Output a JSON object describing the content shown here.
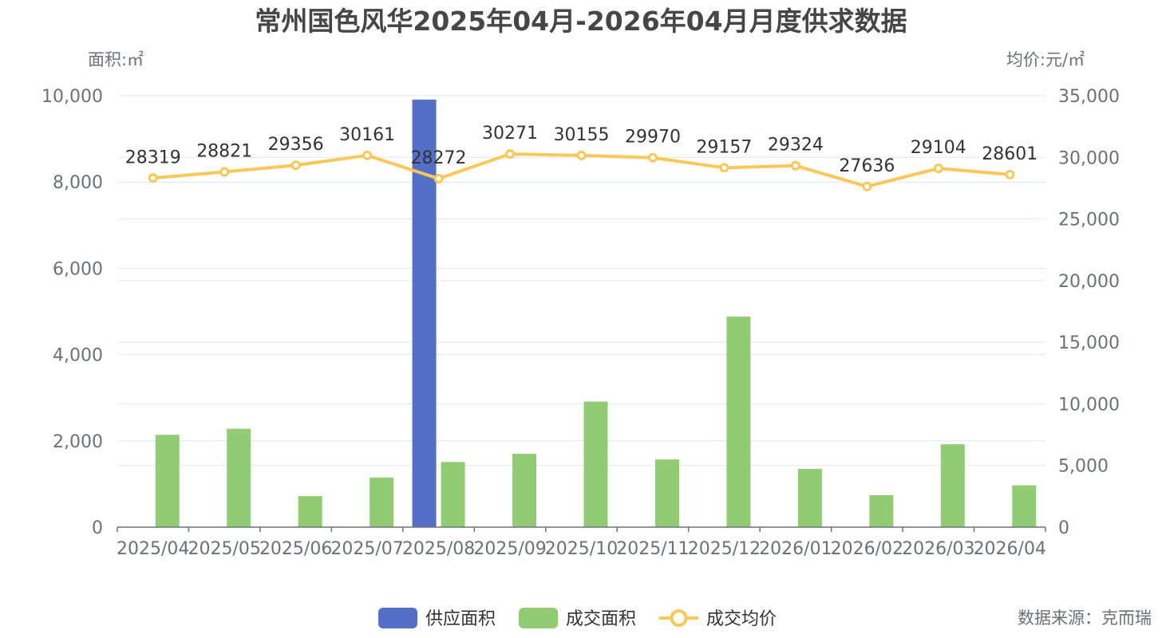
{
  "chart_data": {
    "type": "bar",
    "title": "常州国色风华2025年04月-2026年04月月度供求数据",
    "y_left_name": "面积:㎡",
    "y_right_name": "均价:元/㎡",
    "categories": [
      "2025/04",
      "2025/05",
      "2025/06",
      "2025/07",
      "2025/08",
      "2025/09",
      "2025/10",
      "2025/11",
      "2025/12",
      "2026/01",
      "2026/02",
      "2026/03",
      "2026/04"
    ],
    "y_left_ticks": [
      "0",
      "2,000",
      "4,000",
      "6,000",
      "8,000",
      "10,000"
    ],
    "y_right_ticks": [
      "0",
      "5,000",
      "10,000",
      "15,000",
      "20,000",
      "25,000",
      "30,000",
      "35,000"
    ],
    "y_left_range": [
      0,
      10000
    ],
    "y_right_range": [
      0,
      35000
    ],
    "series": [
      {
        "name": "供应面积",
        "type": "bar",
        "axis": "left",
        "color": "#5470c6",
        "values": [
          0,
          0,
          0,
          0,
          9910,
          0,
          0,
          0,
          0,
          0,
          0,
          0,
          0
        ]
      },
      {
        "name": "成交面积",
        "type": "bar",
        "axis": "left",
        "color": "#91cc75",
        "values": [
          2140,
          2280,
          720,
          1150,
          1510,
          1700,
          2910,
          1570,
          4880,
          1350,
          740,
          1920,
          970
        ]
      },
      {
        "name": "成交均价",
        "type": "line",
        "axis": "right",
        "color": "#fac858",
        "values": [
          28319,
          28821,
          29356,
          30161,
          28272,
          30271,
          30155,
          29970,
          29157,
          29324,
          27636,
          29104,
          28601
        ],
        "labels": [
          "28319",
          "28821",
          "29356",
          "30161",
          "28272",
          "30271",
          "30155",
          "29970",
          "29157",
          "29324",
          "27636",
          "29104",
          "28601"
        ]
      }
    ],
    "legend_position": "bottom-center",
    "grid": true
  },
  "source_note": "数据来源：克而瑞"
}
